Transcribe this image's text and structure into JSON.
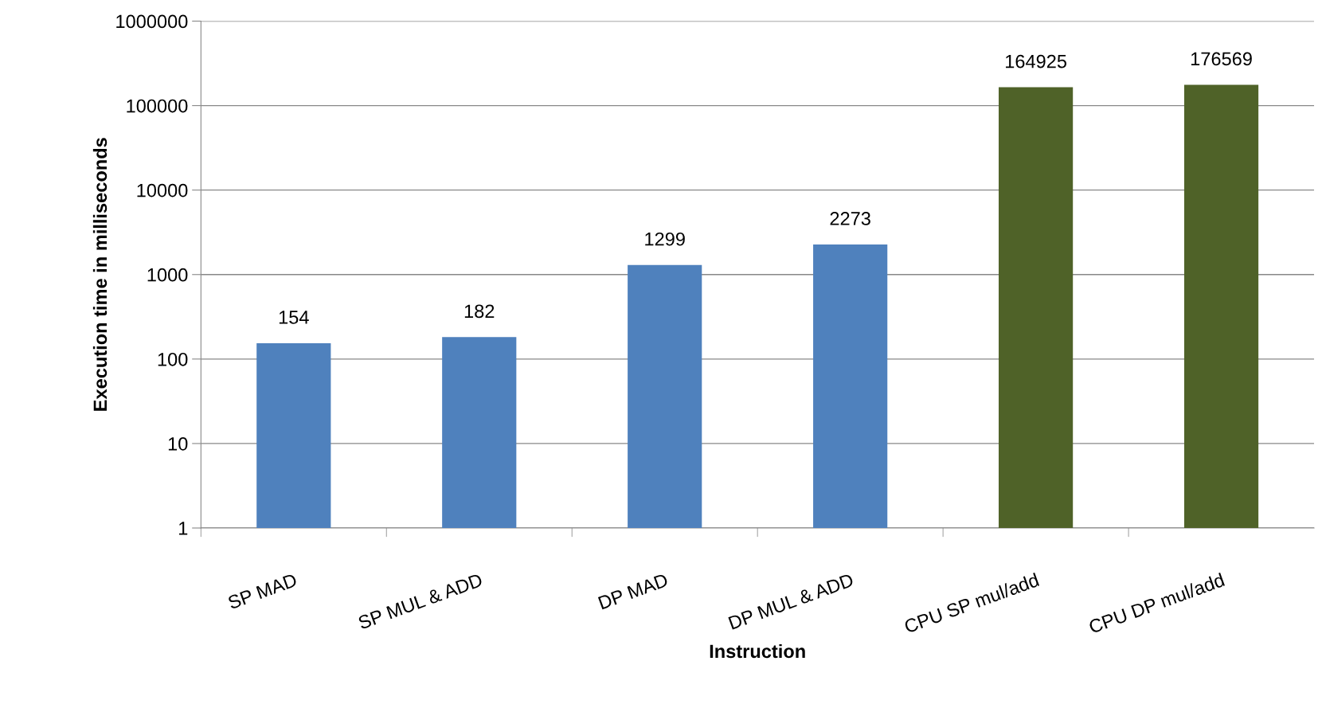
{
  "chart_data": {
    "type": "bar",
    "xlabel": "Instruction",
    "ylabel": "Execution time in milliseconds",
    "categories": [
      "SP MAD",
      "SP MUL & ADD",
      "DP MAD",
      "DP MUL & ADD",
      "CPU SP mul/add",
      "CPU DP mul/add"
    ],
    "values": [
      154,
      182,
      1299,
      2273,
      164925,
      176569
    ],
    "colors": [
      "#4f81bd",
      "#4f81bd",
      "#4f81bd",
      "#4f81bd",
      "#4f6228",
      "#4f6228"
    ],
    "log": true,
    "ylim": [
      1,
      1000000
    ],
    "yticks": [
      1,
      10,
      100,
      1000,
      10000,
      100000,
      1000000
    ],
    "grid": "y",
    "data_labels": true
  }
}
